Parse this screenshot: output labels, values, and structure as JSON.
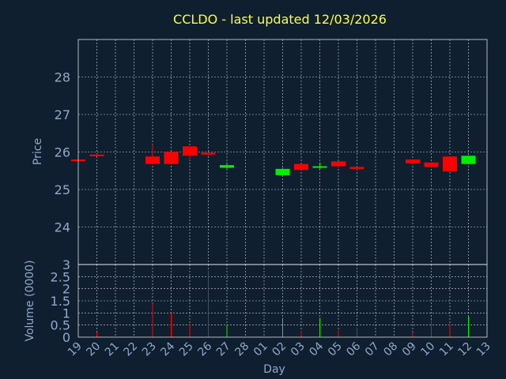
{
  "chart_data": {
    "type": "candlestick",
    "title": "CCLDO - last updated 12/03/2026",
    "xlabel": "Day",
    "ylabel": "Price",
    "volume_label": "Volume (0000)",
    "grid": true,
    "colors": {
      "up": "#00ee00",
      "down": "#ff0000",
      "background": "#0f1f30",
      "title": "#ffff33",
      "tick": "#8fa9c8"
    },
    "days": [
      "19",
      "20",
      "21",
      "22",
      "23",
      "24",
      "25",
      "26",
      "27",
      "28",
      "01",
      "02",
      "03",
      "04",
      "05",
      "06",
      "07",
      "08",
      "09",
      "10",
      "11",
      "12",
      "13"
    ],
    "price_axis": {
      "ylim": [
        23,
        29
      ],
      "ticks": [
        "24",
        "25",
        "26",
        "27",
        "28"
      ]
    },
    "volume_axis": {
      "ylim": [
        0,
        3
      ],
      "ticks": [
        "0",
        "0.5",
        "1",
        "1.5",
        "2",
        "2.5",
        "3"
      ]
    },
    "candles": [
      {
        "day": "19",
        "open": 25.8,
        "high": 25.8,
        "low": 25.78,
        "close": 25.78,
        "volume": 0.0
      },
      {
        "day": "20",
        "open": 25.93,
        "high": 25.95,
        "low": 25.88,
        "close": 25.9,
        "volume": 0.2
      },
      {
        "day": "23",
        "open": 25.88,
        "high": 26.2,
        "low": 25.68,
        "close": 25.68,
        "volume": 1.4
      },
      {
        "day": "24",
        "open": 26.0,
        "high": 26.0,
        "low": 25.68,
        "close": 25.68,
        "volume": 1.0
      },
      {
        "day": "25",
        "open": 26.15,
        "high": 26.15,
        "low": 25.78,
        "close": 25.9,
        "volume": 0.55
      },
      {
        "day": "26",
        "open": 25.98,
        "high": 26.0,
        "low": 25.9,
        "close": 25.93,
        "volume": 2.75
      },
      {
        "day": "27",
        "open": 25.58,
        "high": 25.72,
        "low": 25.55,
        "close": 25.65,
        "volume": 0.5
      },
      {
        "day": "02",
        "open": 25.38,
        "high": 25.58,
        "low": 25.38,
        "close": 25.55,
        "volume": 0.8
      },
      {
        "day": "03",
        "open": 25.68,
        "high": 25.68,
        "low": 25.52,
        "close": 25.52,
        "volume": 0.25
      },
      {
        "day": "04",
        "open": 25.58,
        "high": 25.72,
        "low": 25.55,
        "close": 25.62,
        "volume": 0.8
      },
      {
        "day": "05",
        "open": 25.75,
        "high": 25.75,
        "low": 25.58,
        "close": 25.62,
        "volume": 0.3
      },
      {
        "day": "06",
        "open": 25.6,
        "high": 25.6,
        "low": 25.52,
        "close": 25.55,
        "volume": 0.4
      },
      {
        "day": "09",
        "open": 25.8,
        "high": 25.8,
        "low": 25.68,
        "close": 25.7,
        "volume": 0.2
      },
      {
        "day": "10",
        "open": 25.72,
        "high": 25.72,
        "low": 25.58,
        "close": 25.6,
        "volume": 0.7
      },
      {
        "day": "11",
        "open": 25.88,
        "high": 25.88,
        "low": 25.48,
        "close": 25.48,
        "volume": 0.55
      },
      {
        "day": "12",
        "open": 25.68,
        "high": 25.9,
        "low": 25.68,
        "close": 25.9,
        "volume": 0.85
      }
    ]
  }
}
